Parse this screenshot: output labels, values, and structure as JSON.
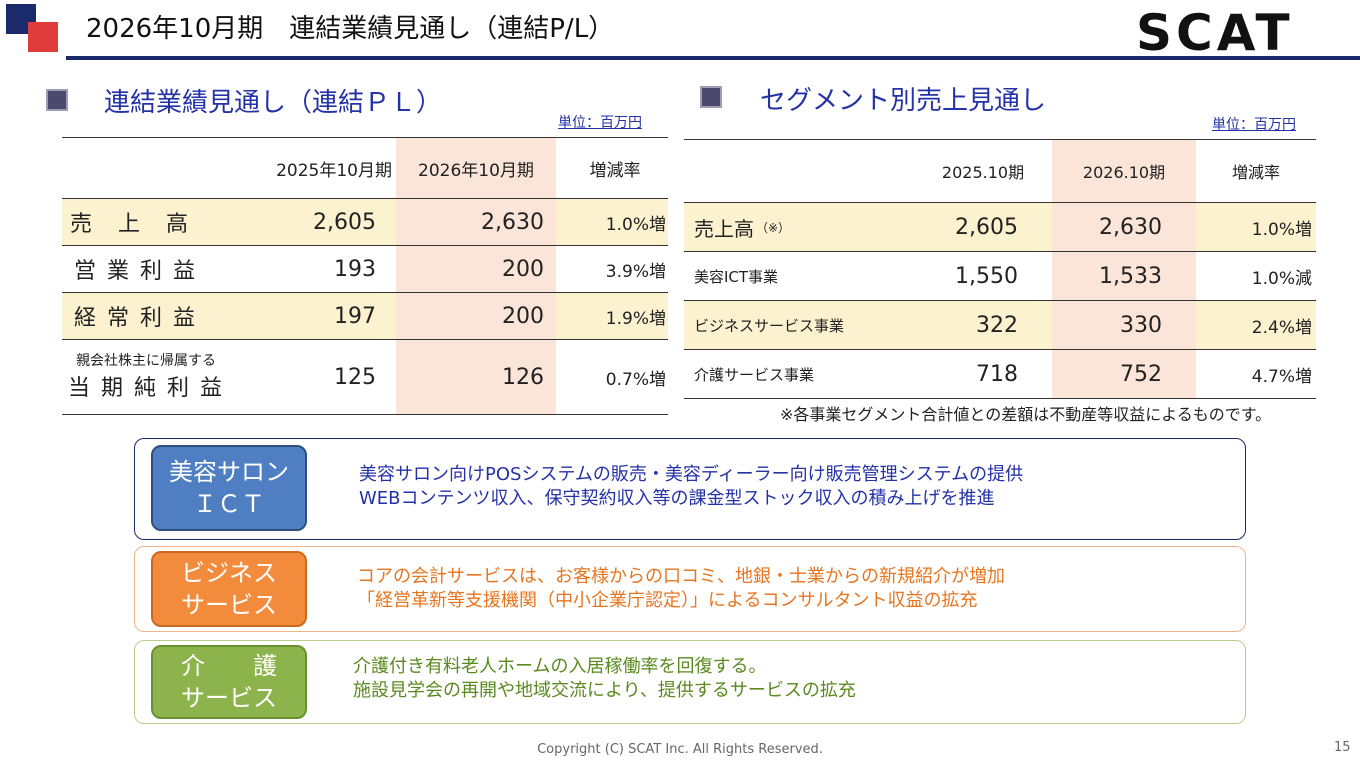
{
  "header": {
    "title": "2026年10月期　連結業績見通し（連結P/L）",
    "brand": "SCAT"
  },
  "pl": {
    "title": "連結業績見通し（連結ＰＬ）",
    "unit": "単位：百万円",
    "columns": [
      "2025年10月期",
      "2026年10月期",
      "増減率"
    ],
    "rows": [
      {
        "label": "売　上　高",
        "sub": "",
        "v2025": "2,605",
        "v2026": "2,630",
        "rate": "1.0%増"
      },
      {
        "label": "営 業 利 益",
        "sub": "",
        "v2025": "193",
        "v2026": "200",
        "rate": "3.9%増"
      },
      {
        "label": "経 常 利 益",
        "sub": "",
        "v2025": "197",
        "v2026": "200",
        "rate": "1.9%増"
      },
      {
        "label": "当 期 純 利 益",
        "sub": "親会社株主に帰属する",
        "v2025": "125",
        "v2026": "126",
        "rate": "0.7%増"
      }
    ]
  },
  "segment": {
    "title": "セグメント別売上見通し",
    "unit": "単位：百万円",
    "columns": [
      "2025.10期",
      "2026.10期",
      "増減率"
    ],
    "rows": [
      {
        "label": "売上高",
        "suffix": "（※）",
        "v2025": "2,605",
        "v2026": "2,630",
        "rate": "1.0%増"
      },
      {
        "label": "美容ICT事業",
        "suffix": "",
        "v2025": "1,550",
        "v2026": "1,533",
        "rate": "1.0%減"
      },
      {
        "label": "ビジネスサービス事業",
        "suffix": "",
        "v2025": "322",
        "v2026": "330",
        "rate": "2.4%増"
      },
      {
        "label": "介護サービス事業",
        "suffix": "",
        "v2025": "718",
        "v2026": "752",
        "rate": "4.7%増"
      }
    ],
    "note": "※各事業セグメント合計値との差額は不動産等収益によるものです。"
  },
  "boxes": [
    {
      "tag_line1": "美容サロン",
      "tag_line2": "ＩＣＴ",
      "text_line1": "美容サロン向けPOSシステムの販売・美容ディーラー向け販売管理システムの提供",
      "text_line2": "WEBコンテンツ収入、保守契約収入等の課金型ストック収入の積み上げを推進",
      "tag_color": "#4f7fc2",
      "border_color": "#1b2a6b",
      "text_color": "#2432a8"
    },
    {
      "tag_line1": "ビジネス",
      "tag_line2": "サービス",
      "text_line1": "コアの会計サービスは、お客様からの口コミ、地銀・士業からの新規紹介が増加",
      "text_line2": "「経営革新等支援機関（中小企業庁認定）」によるコンサルタント収益の拡充",
      "tag_color": "#f28c3c",
      "border_color": "#f2b48a",
      "text_color": "#e8751f"
    },
    {
      "tag_line1": "介　　護",
      "tag_line2": "サービス",
      "text_line1": "介護付き有料老人ホームの入居稼働率を回復する。",
      "text_line2": "施設見学会の再開や地域交流により、提供するサービスの拡充",
      "tag_color": "#8db34c",
      "border_color": "#b8d08c",
      "text_color": "#5a8a1f"
    }
  ],
  "footer": {
    "copyright": "Copyright (C) SCAT Inc. All Rights Reserved.",
    "page": "15"
  }
}
